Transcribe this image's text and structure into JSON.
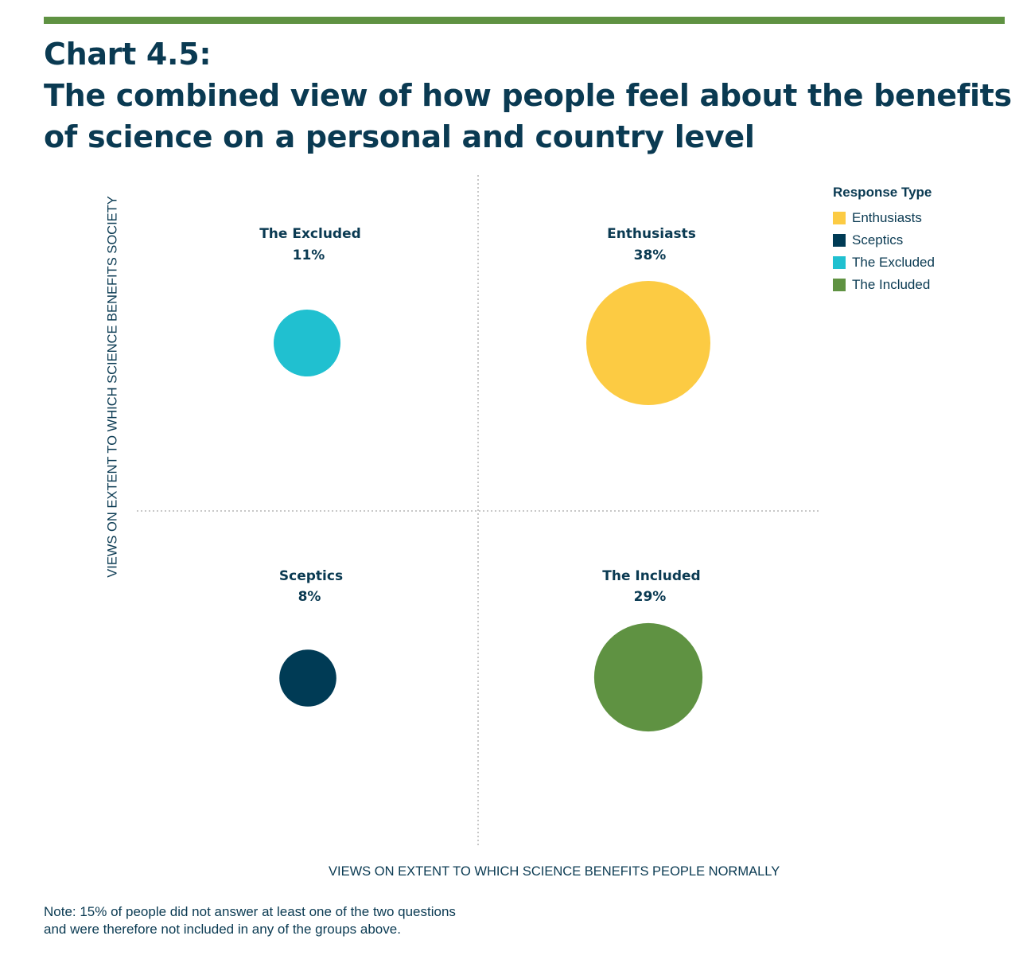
{
  "header": {
    "title_line1": "Chart 4.5:",
    "title_line2": "The combined view of how people feel about the benefits",
    "title_line3": "of science on a personal and country level"
  },
  "colors": {
    "accent_rule": "#5f9242",
    "text": "#0a3a52",
    "grid": "#b5b5b5"
  },
  "chart_data": {
    "type": "scatter",
    "xlabel": "VIEWS ON EXTENT TO WHICH SCIENCE BENEFITS PEOPLE NORMALLY",
    "ylabel": "VIEWS ON EXTENT TO WHICH SCIENCE BENEFITS SOCIETY",
    "grid": "dotted quadrant dividers",
    "legend_title": "Response Type",
    "legend_position": "top-right",
    "series": [
      {
        "name": "Enthusiasts",
        "percent_label": "38%",
        "value": 38,
        "quadrant": "top-right",
        "color": "#fccb43"
      },
      {
        "name": "Sceptics",
        "percent_label": "8%",
        "value": 8,
        "quadrant": "bottom-left",
        "color": "#003b55"
      },
      {
        "name": "The Excluded",
        "percent_label": "11%",
        "value": 11,
        "quadrant": "top-left",
        "color": "#20c0d0"
      },
      {
        "name": "The Included",
        "percent_label": "29%",
        "value": 29,
        "quadrant": "bottom-right",
        "color": "#5f9242"
      }
    ]
  },
  "note": {
    "line1": "Note: 15% of people did not answer at least one of the two questions",
    "line2": "and were therefore not included in any of the groups above."
  }
}
